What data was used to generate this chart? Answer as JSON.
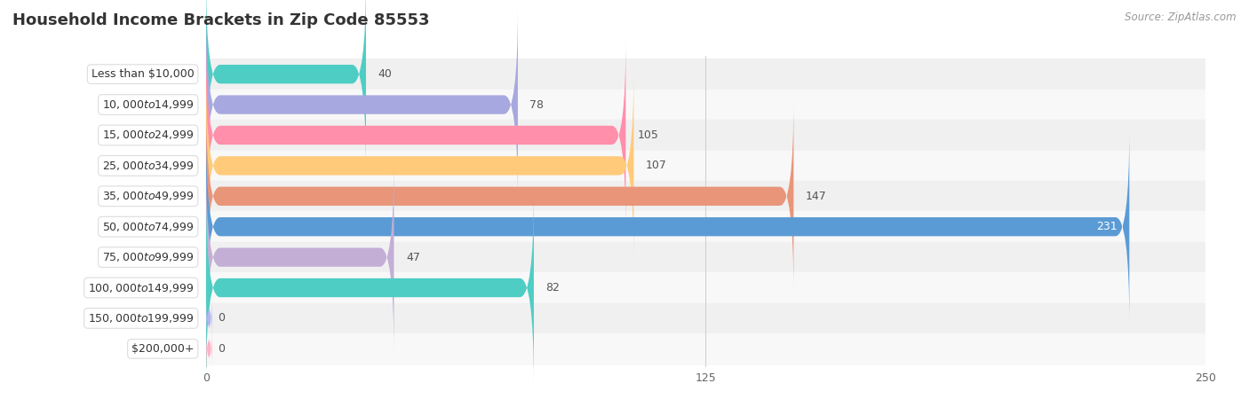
{
  "title": "Household Income Brackets in Zip Code 85553",
  "source": "Source: ZipAtlas.com",
  "categories": [
    "Less than $10,000",
    "$10,000 to $14,999",
    "$15,000 to $24,999",
    "$25,000 to $34,999",
    "$35,000 to $49,999",
    "$50,000 to $74,999",
    "$75,000 to $99,999",
    "$100,000 to $149,999",
    "$150,000 to $199,999",
    "$200,000+"
  ],
  "values": [
    40,
    78,
    105,
    107,
    147,
    231,
    47,
    82,
    0,
    0
  ],
  "bar_colors": [
    "#4ecdc4",
    "#a8a8e0",
    "#ff8fab",
    "#ffca7a",
    "#e8957a",
    "#5b9bd5",
    "#c3aed6",
    "#4ecdc4",
    "#b0b8f0",
    "#ffb3c6"
  ],
  "xlim": [
    0,
    250
  ],
  "xticks": [
    0,
    125,
    250
  ],
  "title_fontsize": 13,
  "value_fontsize": 9,
  "label_fontsize": 9,
  "bar_height": 0.62,
  "row_colors": [
    "#f0f0f0",
    "#f8f8f8"
  ]
}
